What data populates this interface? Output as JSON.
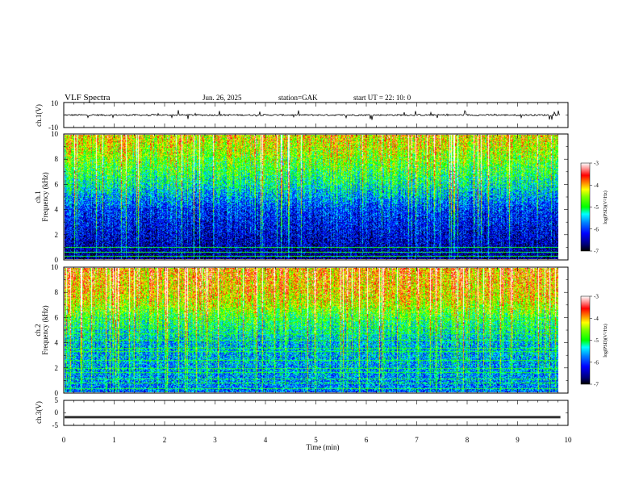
{
  "header": {
    "title": "VLF  Spectra",
    "date": "Jun. 26, 2025",
    "station": "station=GAK",
    "start": "start  UT  =    22: 10: 0"
  },
  "chart_data": [
    {
      "type": "line",
      "panel": "ch1-waveform",
      "ylabel": "ch.1(V)",
      "ylim": [
        -10,
        10
      ],
      "yticks": [
        "10",
        "-10"
      ],
      "xlim": [
        0,
        10
      ],
      "baseline": 0,
      "typical_amplitude": 0.6,
      "spike_amplitude": 2.0
    },
    {
      "type": "heatmap",
      "panel": "ch1-spectrogram",
      "ylabel": "ch.1\nFrequency  (kHz)",
      "ylim": [
        0,
        10
      ],
      "yticks": [
        "0",
        "2",
        "4",
        "6",
        "8",
        "10"
      ],
      "xlim": [
        0,
        9.85
      ],
      "zlabel": "log(PSD)(V²/Hz)",
      "zlim": [
        -7,
        -3
      ],
      "zticks": [
        "-3",
        "-4",
        "-5",
        "-6",
        "-7"
      ],
      "colormap": [
        "#000000",
        "#000033",
        "#00007f",
        "#0000ff",
        "#007fff",
        "#00ffff",
        "#00ff7f",
        "#00ff00",
        "#7fff00",
        "#ffff00",
        "#ff7f00",
        "#ff0000",
        "#ff9999",
        "#ffffff"
      ],
      "band_profile_khz": [
        0,
        2,
        4,
        6,
        7,
        8,
        9,
        10
      ],
      "band_profile_logpsd": [
        -6.6,
        -6.3,
        -6.0,
        -5.2,
        -4.9,
        -4.6,
        -4.3,
        -4.1
      ],
      "horizontal_lines_khz": [
        0.25,
        0.6,
        0.95
      ],
      "horizontal_lines_logpsd": -5.0
    },
    {
      "type": "heatmap",
      "panel": "ch2-spectrogram",
      "ylabel": "ch.2\nFrequency  (kHz)",
      "ylim": [
        0,
        10
      ],
      "yticks": [
        "0",
        "2",
        "4",
        "6",
        "8",
        "10"
      ],
      "xlim": [
        0,
        9.85
      ],
      "zlabel": "log(PSD)(V²/Hz)",
      "zlim": [
        -7,
        -3
      ],
      "zticks": [
        "-3",
        "-4",
        "-5",
        "-6",
        "-7"
      ],
      "band_profile_khz": [
        0,
        2,
        4,
        6,
        7,
        8,
        9,
        10
      ],
      "band_profile_logpsd": [
        -5.8,
        -5.6,
        -5.5,
        -4.9,
        -4.4,
        -4.1,
        -4.0,
        -3.9
      ],
      "horizontal_lines_khz": [
        0.35,
        0.75,
        1.1,
        1.6,
        1.95,
        2.6,
        3.3,
        3.6,
        4.2,
        4.75,
        5.2,
        5.9
      ],
      "horizontal_lines_logpsd": -5.0
    },
    {
      "type": "line",
      "panel": "ch3-waveform",
      "ylabel": "ch.3(V)",
      "ylim": [
        -5,
        5
      ],
      "yticks": [
        "5",
        "0",
        "-5"
      ],
      "xlim": [
        0,
        9.85
      ],
      "baseline": -1.7
    }
  ],
  "xaxis": {
    "label": "Time  (min)",
    "ticks": [
      "0",
      "1",
      "2",
      "3",
      "4",
      "5",
      "6",
      "7",
      "8",
      "9",
      "10"
    ],
    "range": [
      0,
      10
    ]
  }
}
